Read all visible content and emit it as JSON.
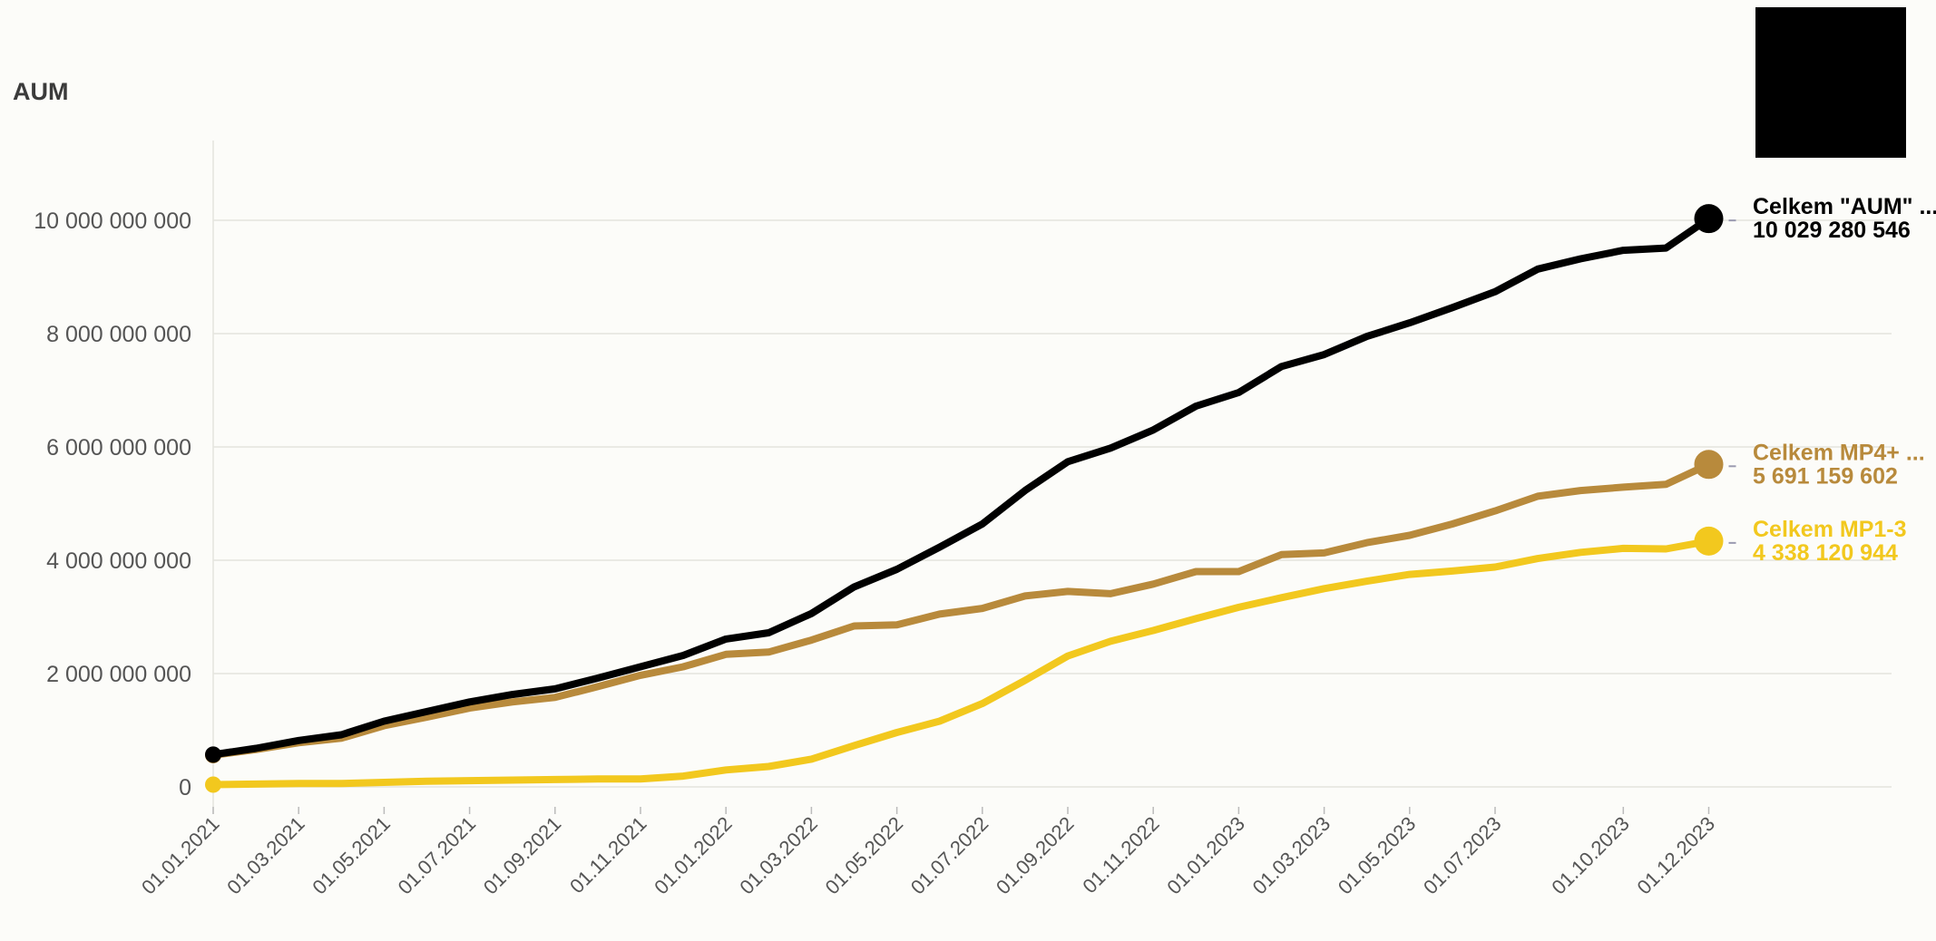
{
  "chart_data": {
    "type": "line",
    "title": "AUM",
    "xlabel": "",
    "ylabel": "",
    "ylim": [
      0,
      11000000000
    ],
    "y_ticks": [
      {
        "value": 0,
        "label": "0"
      },
      {
        "value": 2000000000,
        "label": "2 000 000 000"
      },
      {
        "value": 4000000000,
        "label": "4 000 000 000"
      },
      {
        "value": 6000000000,
        "label": "6 000 000 000"
      },
      {
        "value": 8000000000,
        "label": "8 000 000 000"
      },
      {
        "value": 10000000000,
        "label": "10 000 000 000"
      }
    ],
    "x": [
      "01.01.2021",
      "01.02.2021",
      "01.03.2021",
      "01.04.2021",
      "01.05.2021",
      "01.06.2021",
      "01.07.2021",
      "01.08.2021",
      "01.09.2021",
      "01.10.2021",
      "01.11.2021",
      "01.12.2021",
      "01.01.2022",
      "01.02.2022",
      "01.03.2022",
      "01.04.2022",
      "01.05.2022",
      "01.06.2022",
      "01.07.2022",
      "01.08.2022",
      "01.09.2022",
      "01.10.2022",
      "01.11.2022",
      "01.12.2022",
      "01.01.2023",
      "01.02.2023",
      "01.03.2023",
      "01.04.2023",
      "01.05.2023",
      "01.06.2023",
      "01.07.2023",
      "01.08.2023",
      "01.09.2023",
      "01.10.2023",
      "01.11.2023",
      "01.12.2023"
    ],
    "x_tick_labels": [
      "01.01.2021",
      "01.03.2021",
      "01.05.2021",
      "01.07.2021",
      "01.09.2021",
      "01.11.2021",
      "01.01.2022",
      "01.03.2022",
      "01.05.2022",
      "01.07.2022",
      "01.09.2022",
      "01.11.2022",
      "01.01.2023",
      "01.03.2023",
      "01.05.2023",
      "01.07.2023",
      "01.10.2023",
      "01.12.2023"
    ],
    "grid": "horizontal",
    "series": [
      {
        "name": "Celkem \"AUM\" ...",
        "color": "#000000",
        "end_label": "10 029 280 546",
        "values": [
          570000000,
          680000000,
          820000000,
          920000000,
          1160000000,
          1330000000,
          1500000000,
          1630000000,
          1730000000,
          1920000000,
          2120000000,
          2320000000,
          2610000000,
          2720000000,
          3060000000,
          3530000000,
          3840000000,
          4230000000,
          4640000000,
          5230000000,
          5740000000,
          5980000000,
          6300000000,
          6720000000,
          6960000000,
          7420000000,
          7630000000,
          7950000000,
          8190000000,
          8460000000,
          8740000000,
          9140000000,
          9320000000,
          9470000000,
          9510000000,
          10029280546
        ]
      },
      {
        "name": "Celkem MP4+ ...",
        "color": "#b88a3c",
        "end_label": "5 691 159 602",
        "values": [
          560000000,
          660000000,
          780000000,
          860000000,
          1080000000,
          1230000000,
          1390000000,
          1500000000,
          1580000000,
          1770000000,
          1970000000,
          2120000000,
          2340000000,
          2380000000,
          2590000000,
          2840000000,
          2860000000,
          3050000000,
          3150000000,
          3370000000,
          3450000000,
          3410000000,
          3580000000,
          3800000000,
          3800000000,
          4100000000,
          4130000000,
          4310000000,
          4440000000,
          4640000000,
          4870000000,
          5130000000,
          5230000000,
          5290000000,
          5340000000,
          5691159602
        ]
      },
      {
        "name": "Celkem MP1-3",
        "color": "#f2c81e",
        "end_label": "4 338 120 944",
        "values": [
          40000000,
          50000000,
          60000000,
          60000000,
          80000000,
          100000000,
          110000000,
          120000000,
          130000000,
          140000000,
          140000000,
          190000000,
          300000000,
          360000000,
          490000000,
          730000000,
          960000000,
          1160000000,
          1470000000,
          1880000000,
          2310000000,
          2570000000,
          2760000000,
          2970000000,
          3170000000,
          3340000000,
          3500000000,
          3630000000,
          3750000000,
          3810000000,
          3880000000,
          4030000000,
          4140000000,
          4210000000,
          4200000000,
          4338120944
        ]
      }
    ]
  }
}
